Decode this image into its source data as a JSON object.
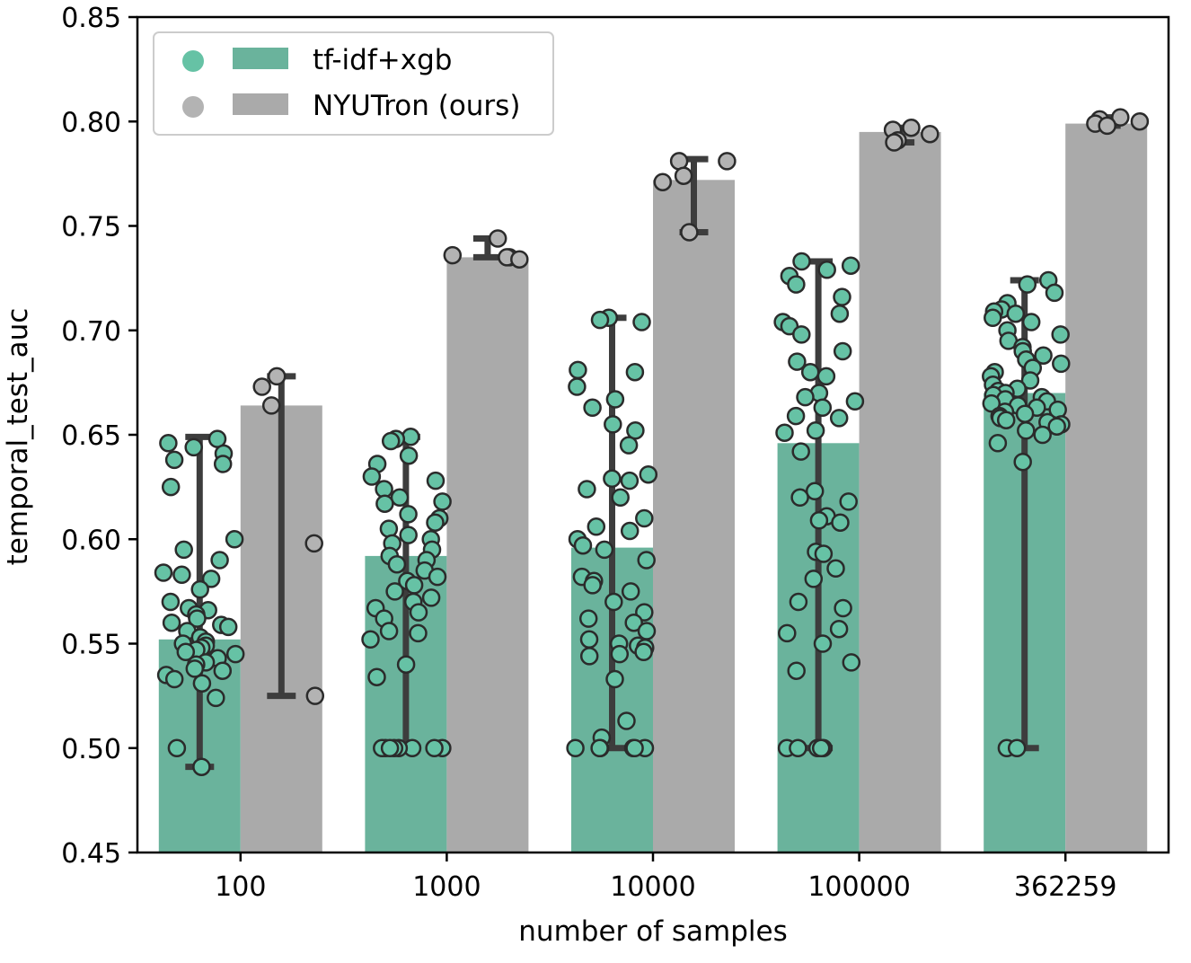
{
  "chart_data": {
    "type": "bar",
    "xlabel": "number of samples",
    "ylabel": "temporal_test_auc",
    "ylim": [
      0.45,
      0.85
    ],
    "yticks": [
      "0.45",
      "0.50",
      "0.55",
      "0.60",
      "0.65",
      "0.70",
      "0.75",
      "0.80",
      "0.85"
    ],
    "categories": [
      "100",
      "1000",
      "10000",
      "100000",
      "362259"
    ],
    "legend_position": "top-left",
    "grid": false,
    "series": [
      {
        "name": "tf-idf+xgb",
        "color": "#6ab39c",
        "point_color": "#66c2a5",
        "values": [
          0.552,
          0.592,
          0.596,
          0.646,
          0.67
        ],
        "error_low": [
          0.491,
          0.5,
          0.5,
          0.5,
          0.5
        ],
        "error_high": [
          0.649,
          0.649,
          0.706,
          0.733,
          0.724
        ],
        "points": [
          [
            0.648,
            0.646,
            0.644,
            0.641,
            0.638,
            0.636,
            0.625,
            0.6,
            0.595,
            0.59,
            0.584,
            0.583,
            0.581,
            0.576,
            0.57,
            0.567,
            0.566,
            0.564,
            0.562,
            0.56,
            0.559,
            0.558,
            0.556,
            0.553,
            0.551,
            0.55,
            0.549,
            0.548,
            0.547,
            0.546,
            0.545,
            0.543,
            0.541,
            0.54,
            0.538,
            0.537,
            0.535,
            0.533,
            0.531,
            0.524,
            0.5,
            0.491
          ],
          [
            0.649,
            0.648,
            0.647,
            0.64,
            0.636,
            0.63,
            0.628,
            0.624,
            0.62,
            0.618,
            0.617,
            0.612,
            0.61,
            0.608,
            0.605,
            0.602,
            0.6,
            0.598,
            0.595,
            0.592,
            0.59,
            0.588,
            0.585,
            0.582,
            0.58,
            0.578,
            0.575,
            0.572,
            0.57,
            0.567,
            0.565,
            0.562,
            0.556,
            0.555,
            0.552,
            0.54,
            0.534,
            0.5,
            0.5,
            0.5,
            0.5,
            0.5,
            0.5,
            0.5,
            0.5
          ],
          [
            0.706,
            0.705,
            0.704,
            0.681,
            0.68,
            0.673,
            0.667,
            0.663,
            0.655,
            0.652,
            0.645,
            0.631,
            0.629,
            0.628,
            0.624,
            0.62,
            0.61,
            0.606,
            0.604,
            0.6,
            0.597,
            0.595,
            0.59,
            0.582,
            0.58,
            0.578,
            0.575,
            0.57,
            0.565,
            0.562,
            0.56,
            0.556,
            0.552,
            0.55,
            0.549,
            0.548,
            0.546,
            0.545,
            0.544,
            0.533,
            0.513,
            0.505,
            0.5,
            0.5,
            0.5,
            0.5,
            0.5,
            0.5
          ],
          [
            0.733,
            0.731,
            0.729,
            0.726,
            0.722,
            0.716,
            0.708,
            0.704,
            0.702,
            0.698,
            0.69,
            0.685,
            0.68,
            0.678,
            0.67,
            0.668,
            0.666,
            0.663,
            0.659,
            0.658,
            0.652,
            0.651,
            0.642,
            0.623,
            0.62,
            0.618,
            0.611,
            0.609,
            0.608,
            0.594,
            0.593,
            0.586,
            0.581,
            0.57,
            0.567,
            0.557,
            0.555,
            0.55,
            0.541,
            0.537,
            0.5,
            0.5,
            0.5,
            0.5,
            0.5
          ],
          [
            0.724,
            0.722,
            0.718,
            0.713,
            0.71,
            0.709,
            0.708,
            0.706,
            0.704,
            0.7,
            0.698,
            0.695,
            0.692,
            0.69,
            0.688,
            0.686,
            0.684,
            0.682,
            0.68,
            0.678,
            0.676,
            0.674,
            0.672,
            0.671,
            0.67,
            0.669,
            0.668,
            0.667,
            0.666,
            0.665,
            0.664,
            0.663,
            0.662,
            0.661,
            0.66,
            0.659,
            0.658,
            0.657,
            0.656,
            0.655,
            0.654,
            0.652,
            0.65,
            0.646,
            0.637,
            0.5,
            0.5
          ]
        ]
      },
      {
        "name": "NYUTron (ours)",
        "color": "#aaaaaa",
        "point_color": "#b3b3b3",
        "values": [
          0.664,
          0.735,
          0.772,
          0.795,
          0.799
        ],
        "error_low": [
          0.525,
          0.735,
          0.747,
          0.79,
          0.798
        ],
        "error_high": [
          0.678,
          0.744,
          0.782,
          0.797,
          0.802
        ],
        "points": [
          [
            0.678,
            0.673,
            0.664,
            0.598,
            0.525
          ],
          [
            0.744,
            0.736,
            0.735,
            0.735,
            0.734
          ],
          [
            0.781,
            0.781,
            0.774,
            0.771,
            0.747
          ],
          [
            0.797,
            0.796,
            0.794,
            0.791,
            0.79
          ],
          [
            0.802,
            0.801,
            0.8,
            0.799,
            0.798
          ]
        ]
      }
    ]
  }
}
